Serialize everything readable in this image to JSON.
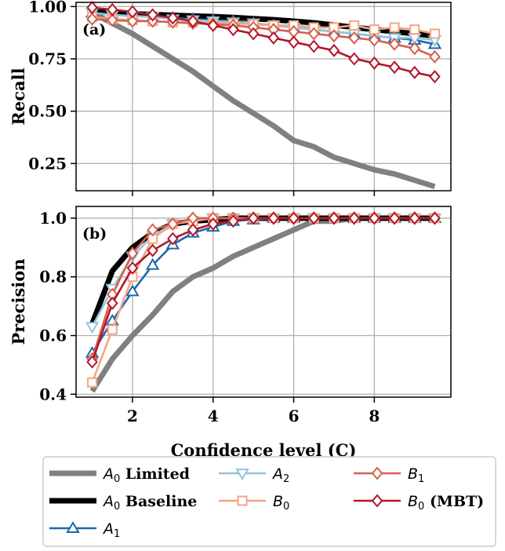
{
  "chart_data": [
    {
      "type": "line",
      "panel_label": "(a)",
      "xlabel": "",
      "ylabel": "Recall",
      "xlim": [
        0.6,
        9.9
      ],
      "ylim": [
        0.12,
        1.02
      ],
      "xticks": [
        2,
        4,
        6,
        8
      ],
      "yticks": [
        0.25,
        0.5,
        0.75,
        1.0
      ],
      "ytick_labels": [
        "0.25",
        "0.50",
        "0.75",
        "1.00"
      ],
      "grid": true,
      "series": [
        {
          "name": "A0 Limited",
          "color": "#808080",
          "marker": "none",
          "x": [
            1,
            1.5,
            2,
            2.5,
            3,
            3.5,
            4,
            4.5,
            5,
            5.5,
            6,
            6.5,
            7,
            7.5,
            8,
            8.5,
            9,
            9.5
          ],
          "values": [
            0.97,
            0.92,
            0.87,
            0.81,
            0.75,
            0.69,
            0.62,
            0.55,
            0.49,
            0.43,
            0.36,
            0.33,
            0.28,
            0.25,
            0.22,
            0.2,
            0.17,
            0.14
          ]
        },
        {
          "name": "A0 Baseline",
          "color": "#000000",
          "marker": "none",
          "x": [
            1,
            1.5,
            2,
            2.5,
            3,
            3.5,
            4,
            4.5,
            5,
            5.5,
            6,
            6.5,
            7,
            7.5,
            8,
            8.5,
            9,
            9.5
          ],
          "values": [
            0.975,
            0.97,
            0.965,
            0.962,
            0.958,
            0.955,
            0.952,
            0.948,
            0.942,
            0.937,
            0.93,
            0.922,
            0.912,
            0.9,
            0.89,
            0.88,
            0.87,
            0.86
          ]
        },
        {
          "name": "A1",
          "color": "#2166ac",
          "marker": "triangle-up",
          "x": [
            1,
            1.5,
            2,
            2.5,
            3,
            3.5,
            4,
            4.5,
            5,
            5.5,
            6,
            6.5,
            7,
            7.5,
            8,
            8.5,
            9,
            9.5
          ],
          "values": [
            0.97,
            0.96,
            0.955,
            0.95,
            0.945,
            0.94,
            0.935,
            0.93,
            0.92,
            0.91,
            0.9,
            0.89,
            0.88,
            0.87,
            0.86,
            0.85,
            0.84,
            0.82
          ]
        },
        {
          "name": "A2",
          "color": "#92c5de",
          "marker": "triangle-down",
          "x": [
            1,
            1.5,
            2,
            2.5,
            3,
            3.5,
            4,
            4.5,
            5,
            5.5,
            6,
            6.5,
            7,
            7.5,
            8,
            8.5,
            9,
            9.5
          ],
          "values": [
            0.97,
            0.96,
            0.955,
            0.95,
            0.94,
            0.935,
            0.93,
            0.925,
            0.92,
            0.91,
            0.9,
            0.89,
            0.88,
            0.87,
            0.86,
            0.85,
            0.85,
            0.84
          ]
        },
        {
          "name": "B0",
          "color": "#f4a582",
          "marker": "square",
          "x": [
            1,
            1.5,
            2,
            2.5,
            3,
            3.5,
            4,
            4.5,
            5,
            5.5,
            6,
            6.5,
            7,
            7.5,
            8,
            8.5,
            9,
            9.5
          ],
          "values": [
            0.95,
            0.94,
            0.935,
            0.93,
            0.925,
            0.925,
            0.92,
            0.92,
            0.915,
            0.91,
            0.91,
            0.9,
            0.9,
            0.91,
            0.89,
            0.9,
            0.89,
            0.87
          ]
        },
        {
          "name": "B1",
          "color": "#d6604d",
          "marker": "diamond",
          "x": [
            1,
            1.5,
            2,
            2.5,
            3,
            3.5,
            4,
            4.5,
            5,
            5.5,
            6,
            6.5,
            7,
            7.5,
            8,
            8.5,
            9,
            9.5
          ],
          "values": [
            0.94,
            0.935,
            0.93,
            0.93,
            0.925,
            0.92,
            0.915,
            0.91,
            0.9,
            0.89,
            0.88,
            0.87,
            0.86,
            0.85,
            0.84,
            0.82,
            0.8,
            0.76
          ]
        },
        {
          "name": "B0 (MBT)",
          "color": "#b2182b",
          "marker": "diamond",
          "x": [
            1,
            1.5,
            2,
            2.5,
            3,
            3.5,
            4,
            4.5,
            5,
            5.5,
            6,
            6.5,
            7,
            7.5,
            8,
            8.5,
            9,
            9.5
          ],
          "values": [
            0.995,
            0.985,
            0.975,
            0.96,
            0.945,
            0.93,
            0.91,
            0.89,
            0.87,
            0.85,
            0.83,
            0.81,
            0.79,
            0.75,
            0.73,
            0.71,
            0.685,
            0.665
          ]
        }
      ]
    },
    {
      "type": "line",
      "panel_label": "(b)",
      "xlabel": "Confidence level (C)",
      "ylabel": "Precision",
      "xlim": [
        0.6,
        9.9
      ],
      "ylim": [
        0.39,
        1.04
      ],
      "xticks": [
        2,
        4,
        6,
        8
      ],
      "yticks": [
        0.4,
        0.6,
        0.8,
        1.0
      ],
      "ytick_labels": [
        "0.4",
        "0.6",
        "0.8",
        "1.0"
      ],
      "grid": true,
      "series": [
        {
          "name": "A0 Limited",
          "color": "#808080",
          "marker": "none",
          "x": [
            1,
            1.5,
            2,
            2.5,
            3,
            3.5,
            4,
            4.5,
            5,
            5.5,
            6,
            6.5,
            7,
            7.5,
            8,
            8.5,
            9,
            9.5
          ],
          "values": [
            0.41,
            0.52,
            0.6,
            0.67,
            0.75,
            0.8,
            0.83,
            0.87,
            0.9,
            0.93,
            0.96,
            0.99,
            0.99,
            1.0,
            1.0,
            1.0,
            1.0,
            1.0
          ]
        },
        {
          "name": "A0 Baseline",
          "color": "#000000",
          "marker": "none",
          "x": [
            1,
            1.5,
            2,
            2.5,
            3,
            3.5,
            4,
            4.5,
            5,
            5.5,
            6,
            6.5,
            7,
            7.5,
            8,
            8.5,
            9,
            9.5
          ],
          "values": [
            0.64,
            0.82,
            0.9,
            0.95,
            0.98,
            0.99,
            0.995,
            1.0,
            1.0,
            1.0,
            1.0,
            1.0,
            1.0,
            1.0,
            1.0,
            1.0,
            1.0,
            1.0
          ]
        },
        {
          "name": "A1",
          "color": "#2166ac",
          "marker": "triangle-up",
          "x": [
            1,
            1.5,
            2,
            2.5,
            3,
            3.5,
            4,
            4.5,
            5,
            5.5,
            6,
            6.5,
            7,
            7.5,
            8,
            8.5,
            9,
            9.5
          ],
          "values": [
            0.54,
            0.65,
            0.75,
            0.84,
            0.91,
            0.95,
            0.97,
            0.99,
            0.995,
            1.0,
            1.0,
            1.0,
            1.0,
            1.0,
            1.0,
            1.0,
            1.0,
            1.0
          ]
        },
        {
          "name": "A2",
          "color": "#92c5de",
          "marker": "triangle-down",
          "x": [
            1,
            1.5,
            2,
            2.5,
            3,
            3.5,
            4,
            4.5,
            5,
            5.5,
            6,
            6.5,
            7,
            7.5,
            8,
            8.5,
            9,
            9.5
          ],
          "values": [
            0.63,
            0.76,
            0.87,
            0.94,
            0.98,
            0.99,
            1.0,
            1.0,
            1.0,
            1.0,
            1.0,
            1.0,
            1.0,
            1.0,
            1.0,
            1.0,
            1.0,
            1.0
          ]
        },
        {
          "name": "B0",
          "color": "#f4a582",
          "marker": "square",
          "x": [
            1,
            1.5,
            2,
            2.5,
            3,
            3.5,
            4,
            4.5,
            5,
            5.5,
            6,
            6.5,
            7,
            7.5,
            8,
            8.5,
            9,
            9.5
          ],
          "values": [
            0.44,
            0.62,
            0.8,
            0.93,
            0.98,
            0.99,
            1.0,
            1.0,
            1.0,
            1.0,
            1.0,
            1.0,
            1.0,
            1.0,
            1.0,
            1.0,
            1.0,
            1.0
          ]
        },
        {
          "name": "B1",
          "color": "#d6604d",
          "marker": "diamond",
          "x": [
            1,
            1.5,
            2,
            2.5,
            3,
            3.5,
            4,
            4.5,
            5,
            5.5,
            6,
            6.5,
            7,
            7.5,
            8,
            8.5,
            9,
            9.5
          ],
          "values": [
            0.52,
            0.74,
            0.88,
            0.96,
            0.98,
            1.0,
            1.0,
            1.0,
            1.0,
            1.0,
            1.0,
            1.0,
            1.0,
            1.0,
            1.0,
            1.0,
            1.0,
            1.0
          ]
        },
        {
          "name": "B0 (MBT)",
          "color": "#b2182b",
          "marker": "diamond",
          "x": [
            1,
            1.5,
            2,
            2.5,
            3,
            3.5,
            4,
            4.5,
            5,
            5.5,
            6,
            6.5,
            7,
            7.5,
            8,
            8.5,
            9,
            9.5
          ],
          "values": [
            0.51,
            0.71,
            0.83,
            0.89,
            0.93,
            0.96,
            0.98,
            0.99,
            1.0,
            1.0,
            1.0,
            1.0,
            1.0,
            1.0,
            1.0,
            1.0,
            1.0,
            1.0
          ]
        }
      ]
    }
  ],
  "legend": {
    "placement": "bottom",
    "entries": [
      {
        "base": "A",
        "sub": "0",
        "suffix": " Limited",
        "series": "A0 Limited"
      },
      {
        "base": "A",
        "sub": "2",
        "suffix": "",
        "series": "A2"
      },
      {
        "base": "B",
        "sub": "1",
        "suffix": "",
        "series": "B1"
      },
      {
        "base": "A",
        "sub": "0",
        "suffix": " Baseline",
        "series": "A0 Baseline"
      },
      {
        "base": "B",
        "sub": "0",
        "suffix": "",
        "series": "B0"
      },
      {
        "base": "B",
        "sub": "0",
        "suffix": " (MBT)",
        "series": "B0 (MBT)"
      },
      {
        "base": "A",
        "sub": "1",
        "suffix": "",
        "series": "A1"
      }
    ]
  }
}
